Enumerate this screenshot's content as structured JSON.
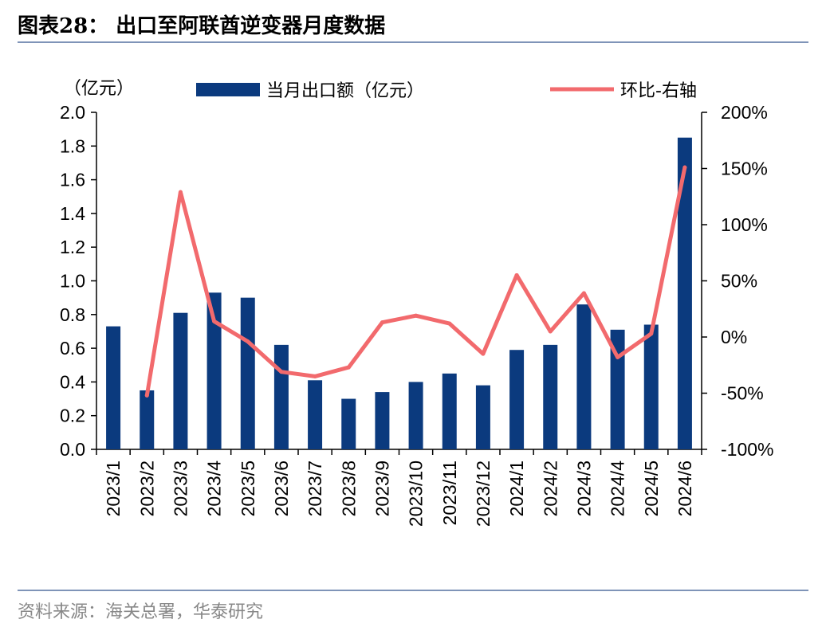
{
  "header": {
    "title": "图表28：  出口至阿联酋逆变器月度数据"
  },
  "footer": {
    "source": "资料来源：海关总署，华泰研究"
  },
  "colors": {
    "bar": "#0b3a7e",
    "line": "#f26a6d",
    "rule": "#7f94b8"
  },
  "chart_data": {
    "type": "bar",
    "unit_label": "（亿元）",
    "categories": [
      "2023/1",
      "2023/2",
      "2023/3",
      "2023/4",
      "2023/5",
      "2023/6",
      "2023/7",
      "2023/8",
      "2023/9",
      "2023/10",
      "2023/11",
      "2023/12",
      "2024/1",
      "2024/2",
      "2024/3",
      "2024/4",
      "2024/5",
      "2024/6"
    ],
    "series": [
      {
        "name": "当月出口额（亿元）",
        "type": "bar",
        "axis": "left",
        "values": [
          0.73,
          0.35,
          0.81,
          0.93,
          0.9,
          0.62,
          0.41,
          0.3,
          0.34,
          0.4,
          0.45,
          0.38,
          0.59,
          0.62,
          0.86,
          0.71,
          0.74,
          1.85
        ]
      },
      {
        "name": "环比-右轴",
        "type": "line",
        "axis": "right",
        "values": [
          null,
          -52,
          129,
          14,
          -4,
          -31,
          -35,
          -27,
          13,
          19,
          12,
          -15,
          55,
          5,
          39,
          -18,
          3,
          151
        ]
      }
    ],
    "y_left": {
      "min": 0,
      "max": 2.0,
      "ticks": [
        "0.0",
        "0.2",
        "0.4",
        "0.6",
        "0.8",
        "1.0",
        "1.2",
        "1.4",
        "1.6",
        "1.8",
        "2.0"
      ]
    },
    "y_right": {
      "min": -100,
      "max": 200,
      "ticks": [
        "-100%",
        "-50%",
        "0%",
        "50%",
        "100%",
        "150%",
        "200%"
      ]
    },
    "legend_position": "top",
    "grid": false
  }
}
